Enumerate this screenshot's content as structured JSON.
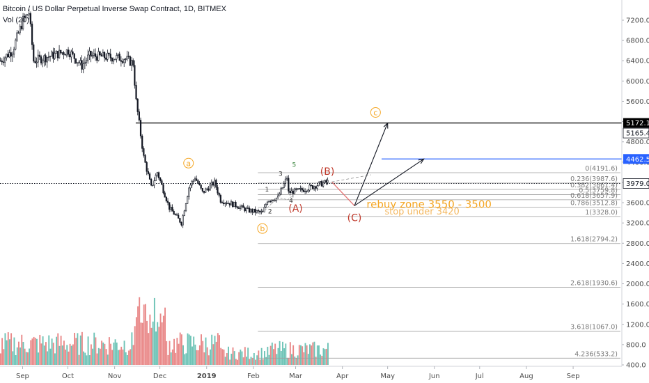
{
  "header": {
    "symbol": "Bitcoin / US Dollar Perpetual Inverse Swap Contract, 1D, BITMEX",
    "volume": "Vol (20)"
  },
  "colors": {
    "up": "#53b9a9",
    "down": "#e57373",
    "candle": "#131722",
    "elliott_orange": "#f5a623",
    "elliott_red": "#c0392b",
    "wave_green": "#2e7d32",
    "blue_line": "#2962ff",
    "black_line": "#000000"
  },
  "chart_data": {
    "type": "candlestick",
    "x_ticks": [
      "Sep",
      "Oct",
      "Nov",
      "Dec",
      "2019",
      "Feb",
      "Mar",
      "Apr",
      "May",
      "Jun",
      "Jul",
      "Aug",
      "Sep"
    ],
    "y_ticks": [
      "7200.0",
      "6800.0",
      "6400.0",
      "6000.0",
      "5600.0",
      "5200.0",
      "4800.0",
      "4400.0",
      "4000.0",
      "3600.0",
      "3200.0",
      "2800.0",
      "2400.0",
      "2000.0",
      "1600.0",
      "1200.0",
      "800.0",
      "400.0"
    ],
    "ylim": [
      400,
      7480
    ],
    "price_anchors": [
      {
        "date": "2018-08-17",
        "price": 6400
      },
      {
        "date": "2018-08-25",
        "price": 6600
      },
      {
        "date": "2018-09-01",
        "price": 7200
      },
      {
        "date": "2018-09-05",
        "price": 7350
      },
      {
        "date": "2018-09-08",
        "price": 6400
      },
      {
        "date": "2018-09-20",
        "price": 6500
      },
      {
        "date": "2018-10-01",
        "price": 6600
      },
      {
        "date": "2018-10-10",
        "price": 6300
      },
      {
        "date": "2018-10-15",
        "price": 6500
      },
      {
        "date": "2018-11-07",
        "price": 6450
      },
      {
        "date": "2018-11-13",
        "price": 6350
      },
      {
        "date": "2018-11-15",
        "price": 5600
      },
      {
        "date": "2018-11-20",
        "price": 4500
      },
      {
        "date": "2018-11-25",
        "price": 3900
      },
      {
        "date": "2018-11-29",
        "price": 4200
      },
      {
        "date": "2018-12-07",
        "price": 3500
      },
      {
        "date": "2018-12-15",
        "price": 3200
      },
      {
        "date": "2018-12-20",
        "price": 3900
      },
      {
        "date": "2018-12-24",
        "price": 4100
      },
      {
        "date": "2018-12-29",
        "price": 3800
      },
      {
        "date": "2019-01-06",
        "price": 4000
      },
      {
        "date": "2019-01-10",
        "price": 3650
      },
      {
        "date": "2019-01-20",
        "price": 3550
      },
      {
        "date": "2019-01-28",
        "price": 3450
      },
      {
        "date": "2019-02-07",
        "price": 3400
      },
      {
        "date": "2019-02-10",
        "price": 3650
      },
      {
        "date": "2019-02-17",
        "price": 3700
      },
      {
        "date": "2019-02-23",
        "price": 4100
      },
      {
        "date": "2019-02-24",
        "price": 3800
      },
      {
        "date": "2019-03-05",
        "price": 3850
      },
      {
        "date": "2019-03-15",
        "price": 3950
      },
      {
        "date": "2019-03-22",
        "price": 4010
      }
    ],
    "price_labels": [
      {
        "price": 5172.1,
        "text": "5172.1",
        "style": "black"
      },
      {
        "price": 5165.4,
        "text": "5165.4",
        "style": "dark"
      },
      {
        "price": 4462.5,
        "text": "4462.5",
        "style": "blue"
      },
      {
        "price": 3979.0,
        "text": "3979.0",
        "style": "dark"
      }
    ],
    "horizontal_lines": [
      {
        "price": 5172.1,
        "from": "2018-11-15",
        "color": "black"
      },
      {
        "price": 4462.5,
        "from": "2019-04-27",
        "color": "blue"
      },
      {
        "price": 3979.0,
        "from": "2018-08-17",
        "color": "dotted"
      }
    ],
    "fib_levels": [
      {
        "text": "0(4191.6)",
        "price": 4191.6
      },
      {
        "text": "0.236(3987.6)",
        "price": 3987.6
      },
      {
        "text": "0.382(3861.4)",
        "price": 3861.4
      },
      {
        "text": "0.5(3759.8)",
        "price": 3759.8
      },
      {
        "text": "0.618(3657.9)",
        "price": 3657.9
      },
      {
        "text": "0.786(3512.8)",
        "price": 3512.8
      },
      {
        "text": "1(3328.0)",
        "price": 3328.0
      },
      {
        "text": "1.618(2794.2)",
        "price": 2794.2
      },
      {
        "text": "2.618(1930.6)",
        "price": 1930.6
      },
      {
        "text": "3.618(1067.0)",
        "price": 1067.0
      },
      {
        "text": "4.236(533.2)",
        "price": 533.2
      }
    ],
    "volume": {
      "max": 1000,
      "base_price": 400,
      "top_price": 1600
    }
  },
  "annotations": {
    "wave_a": "a",
    "wave_b": "b",
    "wave_c": "c",
    "wave_A": "(A)",
    "wave_B": "(B)",
    "wave_C": "(C)",
    "sub_1": "1",
    "sub_2": "2",
    "sub_3": "3",
    "sub_4": "4",
    "sub_5": "5",
    "rebuy": "rebuy zone 3550 - 3500",
    "stop": "stop under 3420"
  }
}
